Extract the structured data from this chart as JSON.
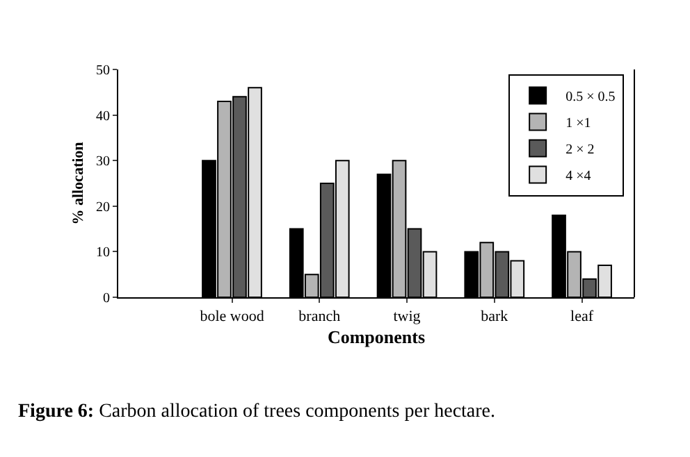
{
  "chart_data": {
    "type": "bar",
    "xlabel": "Components",
    "ylabel": "% allocation",
    "categories": [
      "bole wood",
      "branch",
      "twig",
      "bark",
      "leaf"
    ],
    "series": [
      {
        "name": "0.5 × 0.5",
        "color": "#000000",
        "values": [
          30,
          15,
          27,
          10,
          18
        ]
      },
      {
        "name": "1 ×1",
        "color": "#b4b4b4",
        "values": [
          43,
          5,
          30,
          12,
          10
        ]
      },
      {
        "name": "2 × 2",
        "color": "#5a5a5a",
        "values": [
          44,
          25,
          15,
          10,
          4
        ]
      },
      {
        "name": "4 ×4",
        "color": "#e0e0e0",
        "values": [
          46,
          30,
          10,
          8,
          7
        ]
      }
    ],
    "ylim": [
      0,
      50
    ],
    "yticks": [
      0,
      10,
      20,
      30,
      40,
      50
    ],
    "legend": "top right",
    "annotations": [
      "Figure 6: Carbon allocation of trees components per hectare."
    ]
  }
}
